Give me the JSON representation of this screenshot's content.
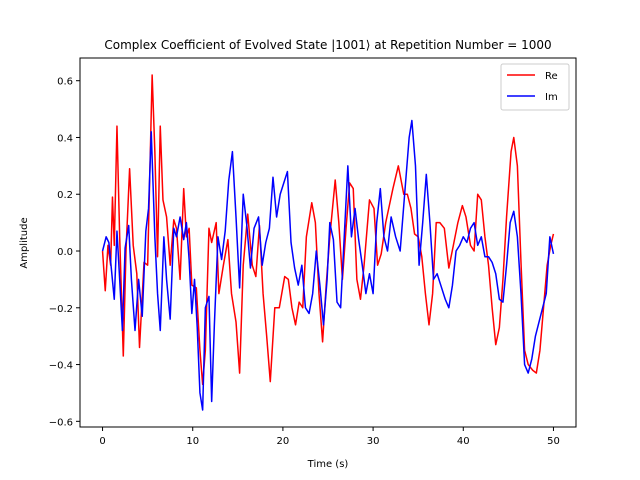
{
  "chart_data": {
    "type": "line",
    "title": "Complex Coefficient of Evolved State |1001⟩ at Repetition Number = 1000",
    "xlabel": "Time (s)",
    "ylabel": "Amplitude",
    "xlim": [
      -2.5,
      52.5
    ],
    "ylim": [
      -0.62,
      0.68
    ],
    "xticks": [
      0,
      10,
      20,
      30,
      40,
      50
    ],
    "yticks": [
      -0.6,
      -0.4,
      -0.2,
      0.0,
      0.2,
      0.4,
      0.6
    ],
    "xtick_labels": [
      "0",
      "10",
      "20",
      "30",
      "40",
      "50"
    ],
    "ytick_labels": [
      "−0.6",
      "−0.4",
      "−0.2",
      "0.0",
      "0.2",
      "0.4",
      "0.6"
    ],
    "legend_position": "top-right",
    "grid": false,
    "series": [
      {
        "name": "Re",
        "color": "#ff0000",
        "points": [
          [
            0,
            0
          ],
          [
            0.3,
            -0.14
          ],
          [
            0.6,
            0.02
          ],
          [
            0.9,
            -0.05
          ],
          [
            1.1,
            0.19
          ],
          [
            1.3,
            0.02
          ],
          [
            1.6,
            0.44
          ],
          [
            1.9,
            0.05
          ],
          [
            2.3,
            -0.37
          ],
          [
            2.6,
            0.0
          ],
          [
            3.0,
            0.29
          ],
          [
            3.4,
            0.02
          ],
          [
            3.8,
            -0.08
          ],
          [
            4.1,
            -0.34
          ],
          [
            4.6,
            -0.04
          ],
          [
            5.0,
            -0.05
          ],
          [
            5.5,
            0.62
          ],
          [
            5.8,
            0.35
          ],
          [
            6.1,
            -0.02
          ],
          [
            6.4,
            0.44
          ],
          [
            6.7,
            0.18
          ],
          [
            7.1,
            0.12
          ],
          [
            7.5,
            -0.05
          ],
          [
            7.9,
            0.11
          ],
          [
            8.2,
            0.08
          ],
          [
            8.6,
            -0.1
          ],
          [
            9.0,
            0.22
          ],
          [
            9.3,
            0.05
          ],
          [
            9.6,
            0.08
          ],
          [
            9.9,
            -0.12
          ],
          [
            10.4,
            -0.13
          ],
          [
            10.8,
            -0.35
          ],
          [
            11.1,
            -0.47
          ],
          [
            11.4,
            -0.35
          ],
          [
            11.8,
            0.08
          ],
          [
            12.1,
            0.03
          ],
          [
            12.6,
            0.1
          ],
          [
            12.9,
            -0.15
          ],
          [
            13.4,
            -0.05
          ],
          [
            13.9,
            0.04
          ],
          [
            14.3,
            -0.15
          ],
          [
            14.8,
            -0.25
          ],
          [
            15.2,
            -0.43
          ],
          [
            15.6,
            -0.05
          ],
          [
            16.1,
            0.13
          ],
          [
            16.6,
            -0.05
          ],
          [
            17.0,
            -0.09
          ],
          [
            17.4,
            0.09
          ],
          [
            17.8,
            -0.15
          ],
          [
            18.2,
            -0.3
          ],
          [
            18.6,
            -0.46
          ],
          [
            19.1,
            -0.2
          ],
          [
            19.6,
            -0.2
          ],
          [
            20.2,
            -0.09
          ],
          [
            20.6,
            -0.1
          ],
          [
            21.0,
            -0.2
          ],
          [
            21.4,
            -0.26
          ],
          [
            21.8,
            -0.18
          ],
          [
            22.2,
            -0.2
          ],
          [
            22.6,
            0.05
          ],
          [
            23.2,
            0.17
          ],
          [
            23.6,
            0.1
          ],
          [
            24.0,
            -0.15
          ],
          [
            24.4,
            -0.32
          ],
          [
            24.8,
            -0.12
          ],
          [
            25.2,
            0.05
          ],
          [
            25.8,
            0.25
          ],
          [
            26.2,
            0.1
          ],
          [
            26.6,
            -0.1
          ],
          [
            27.0,
            0.08
          ],
          [
            27.4,
            0.24
          ],
          [
            27.8,
            0.22
          ],
          [
            28.2,
            -0.1
          ],
          [
            28.6,
            -0.17
          ],
          [
            29.0,
            -0.05
          ],
          [
            29.6,
            0.18
          ],
          [
            30.1,
            0.15
          ],
          [
            30.5,
            -0.05
          ],
          [
            30.9,
            -0.01
          ],
          [
            31.4,
            0.1
          ],
          [
            31.8,
            0.16
          ],
          [
            32.2,
            0.22
          ],
          [
            32.8,
            0.3
          ],
          [
            33.4,
            0.2
          ],
          [
            33.8,
            0.2
          ],
          [
            34.2,
            0.15
          ],
          [
            34.6,
            0.06
          ],
          [
            35.0,
            0.05
          ],
          [
            35.4,
            -0.02
          ],
          [
            35.8,
            -0.15
          ],
          [
            36.2,
            -0.26
          ],
          [
            36.6,
            -0.15
          ],
          [
            37.0,
            0.1
          ],
          [
            37.4,
            0.1
          ],
          [
            37.9,
            0.08
          ],
          [
            38.4,
            -0.06
          ],
          [
            38.9,
            0.02
          ],
          [
            39.4,
            0.1
          ],
          [
            39.9,
            0.16
          ],
          [
            40.3,
            0.12
          ],
          [
            40.8,
            0.02
          ],
          [
            41.2,
            0.0
          ],
          [
            41.6,
            0.2
          ],
          [
            42.0,
            0.18
          ],
          [
            42.4,
            0.05
          ],
          [
            42.8,
            -0.05
          ],
          [
            43.2,
            -0.2
          ],
          [
            43.6,
            -0.33
          ],
          [
            44.0,
            -0.27
          ],
          [
            44.4,
            -0.1
          ],
          [
            44.8,
            0.12
          ],
          [
            45.3,
            0.35
          ],
          [
            45.6,
            0.4
          ],
          [
            46.0,
            0.3
          ],
          [
            46.4,
            -0.04
          ],
          [
            46.8,
            -0.35
          ],
          [
            47.2,
            -0.4
          ],
          [
            47.7,
            -0.42
          ],
          [
            48.1,
            -0.43
          ],
          [
            48.5,
            -0.35
          ],
          [
            48.9,
            -0.2
          ],
          [
            49.3,
            -0.05
          ],
          [
            49.7,
            0.02
          ],
          [
            50.0,
            0.06
          ]
        ]
      },
      {
        "name": "Im",
        "color": "#0000ff",
        "points": [
          [
            0,
            0
          ],
          [
            0.4,
            0.05
          ],
          [
            0.7,
            0.03
          ],
          [
            1.0,
            -0.07
          ],
          [
            1.3,
            -0.17
          ],
          [
            1.6,
            0.07
          ],
          [
            1.9,
            -0.1
          ],
          [
            2.2,
            -0.28
          ],
          [
            2.5,
            0.01
          ],
          [
            2.9,
            0.09
          ],
          [
            3.2,
            -0.1
          ],
          [
            3.6,
            -0.28
          ],
          [
            4.0,
            -0.1
          ],
          [
            4.4,
            -0.23
          ],
          [
            4.8,
            0.07
          ],
          [
            5.1,
            0.15
          ],
          [
            5.4,
            0.42
          ],
          [
            5.8,
            0.05
          ],
          [
            6.1,
            -0.15
          ],
          [
            6.4,
            -0.28
          ],
          [
            6.8,
            0.05
          ],
          [
            7.1,
            -0.1
          ],
          [
            7.5,
            -0.24
          ],
          [
            7.9,
            0.08
          ],
          [
            8.2,
            0.05
          ],
          [
            8.6,
            0.12
          ],
          [
            9.0,
            0.04
          ],
          [
            9.3,
            0.1
          ],
          [
            9.6,
            -0.03
          ],
          [
            9.9,
            -0.22
          ],
          [
            10.2,
            -0.1
          ],
          [
            10.5,
            -0.27
          ],
          [
            10.8,
            -0.5
          ],
          [
            11.1,
            -0.56
          ],
          [
            11.4,
            -0.2
          ],
          [
            11.8,
            -0.16
          ],
          [
            12.1,
            -0.53
          ],
          [
            12.4,
            -0.26
          ],
          [
            12.8,
            0.05
          ],
          [
            13.2,
            -0.03
          ],
          [
            13.6,
            0.07
          ],
          [
            14.0,
            0.25
          ],
          [
            14.4,
            0.35
          ],
          [
            14.8,
            0.12
          ],
          [
            15.2,
            -0.13
          ],
          [
            15.6,
            0.2
          ],
          [
            16.0,
            0.09
          ],
          [
            16.4,
            -0.06
          ],
          [
            16.8,
            0.08
          ],
          [
            17.3,
            0.12
          ],
          [
            17.7,
            -0.05
          ],
          [
            18.1,
            0.03
          ],
          [
            18.5,
            0.08
          ],
          [
            18.9,
            0.26
          ],
          [
            19.3,
            0.12
          ],
          [
            19.7,
            0.2
          ],
          [
            20.1,
            0.24
          ],
          [
            20.5,
            0.28
          ],
          [
            20.9,
            0.03
          ],
          [
            21.3,
            -0.06
          ],
          [
            21.7,
            -0.12
          ],
          [
            22.1,
            -0.05
          ],
          [
            22.5,
            -0.2
          ],
          [
            22.9,
            -0.22
          ],
          [
            23.3,
            -0.15
          ],
          [
            23.7,
            0.0
          ],
          [
            24.1,
            -0.12
          ],
          [
            24.5,
            -0.26
          ],
          [
            24.9,
            -0.1
          ],
          [
            25.2,
            0.1
          ],
          [
            25.6,
            0.04
          ],
          [
            26.0,
            -0.18
          ],
          [
            26.4,
            -0.2
          ],
          [
            26.8,
            0.05
          ],
          [
            27.2,
            0.3
          ],
          [
            27.6,
            0.05
          ],
          [
            28.0,
            0.15
          ],
          [
            28.4,
            0.04
          ],
          [
            28.8,
            -0.05
          ],
          [
            29.2,
            -0.15
          ],
          [
            29.6,
            -0.08
          ],
          [
            30.0,
            -0.15
          ],
          [
            30.4,
            0.1
          ],
          [
            30.8,
            0.22
          ],
          [
            31.2,
            0.05
          ],
          [
            31.6,
            0.0
          ],
          [
            32.0,
            0.12
          ],
          [
            32.5,
            0.05
          ],
          [
            33.0,
            0.0
          ],
          [
            33.5,
            0.2
          ],
          [
            34.0,
            0.4
          ],
          [
            34.3,
            0.46
          ],
          [
            34.7,
            0.3
          ],
          [
            35.1,
            -0.05
          ],
          [
            35.5,
            0.1
          ],
          [
            35.9,
            0.27
          ],
          [
            36.3,
            0.1
          ],
          [
            36.7,
            -0.1
          ],
          [
            37.1,
            -0.08
          ],
          [
            37.5,
            -0.12
          ],
          [
            38.0,
            -0.17
          ],
          [
            38.4,
            -0.2
          ],
          [
            38.8,
            -0.12
          ],
          [
            39.2,
            0.0
          ],
          [
            39.6,
            0.02
          ],
          [
            40.0,
            0.05
          ],
          [
            40.4,
            0.03
          ],
          [
            40.8,
            0.08
          ],
          [
            41.2,
            0.1
          ],
          [
            41.6,
            0.02
          ],
          [
            42.0,
            0.05
          ],
          [
            42.4,
            -0.02
          ],
          [
            42.8,
            -0.02
          ],
          [
            43.2,
            -0.04
          ],
          [
            43.6,
            -0.08
          ],
          [
            44.0,
            -0.17
          ],
          [
            44.4,
            -0.18
          ],
          [
            44.8,
            -0.05
          ],
          [
            45.2,
            0.1
          ],
          [
            45.6,
            0.14
          ],
          [
            46.0,
            0.05
          ],
          [
            46.4,
            -0.15
          ],
          [
            46.8,
            -0.4
          ],
          [
            47.2,
            -0.43
          ],
          [
            47.6,
            -0.38
          ],
          [
            48.0,
            -0.3
          ],
          [
            48.4,
            -0.25
          ],
          [
            48.8,
            -0.2
          ],
          [
            49.2,
            -0.15
          ],
          [
            49.6,
            0.05
          ],
          [
            50.0,
            -0.01
          ]
        ]
      }
    ]
  }
}
